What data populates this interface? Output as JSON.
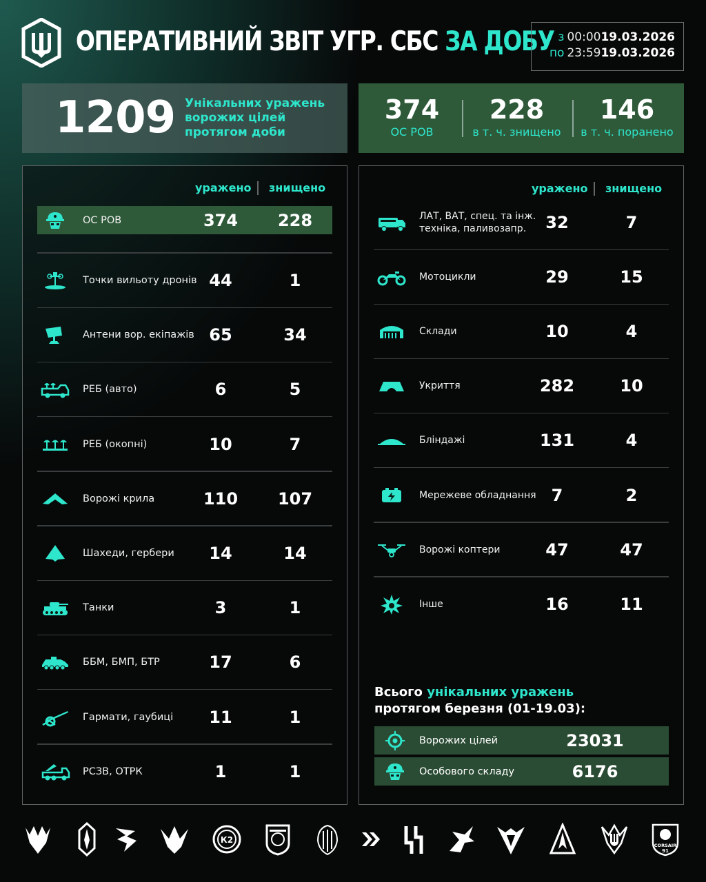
{
  "header": {
    "title_white": "ОПЕРАТИВНИЙ ЗВІТ УГР. СБС",
    "title_teal": "ЗА ДОБУ",
    "from_label": "з",
    "from_time": "00:00",
    "from_date": "19.03.2026",
    "to_label": "по",
    "to_time": "23:59",
    "to_date": "19.03.2026"
  },
  "summary": {
    "total": "1209",
    "description": "Унікальних уражень ворожих цілей протягом доби",
    "kpis": [
      {
        "value": "374",
        "label": "ОС РОВ"
      },
      {
        "value": "228",
        "label": "в т. ч. знищено"
      },
      {
        "value": "146",
        "label": "в т. ч. поранено"
      }
    ]
  },
  "columns": {
    "hit": "уражено",
    "destroyed": "знищено"
  },
  "left_rows": [
    {
      "icon": "soldier-helmet-icon",
      "name": "ОС РОВ",
      "hit": "374",
      "destroyed": "228"
    },
    {
      "icon": "drone-launch-point-icon",
      "name": "Точки вильоту дронів",
      "hit": "44",
      "destroyed": "1"
    },
    {
      "icon": "antenna-dish-icon",
      "name": "Антени вор. екіпажів",
      "hit": "65",
      "destroyed": "34"
    },
    {
      "icon": "ew-vehicle-icon",
      "name": "РЕБ (авто)",
      "hit": "6",
      "destroyed": "5"
    },
    {
      "icon": "ew-trench-icon",
      "name": "РЕБ (окопні)",
      "hit": "10",
      "destroyed": "7"
    },
    {
      "icon": "fixed-wing-drone-icon",
      "name": "Ворожі крила",
      "hit": "110",
      "destroyed": "107"
    },
    {
      "icon": "shahed-drone-icon",
      "name": "Шахеди, гербери",
      "hit": "14",
      "destroyed": "14"
    },
    {
      "icon": "tank-icon",
      "name": "Танки",
      "hit": "3",
      "destroyed": "1"
    },
    {
      "icon": "apc-icon",
      "name": "ББМ, БМП, БТР",
      "hit": "17",
      "destroyed": "6"
    },
    {
      "icon": "howitzer-icon",
      "name": "Гармати, гаубиці",
      "hit": "11",
      "destroyed": "1"
    },
    {
      "icon": "mlrs-icon",
      "name": "РСЗВ, ОТРК",
      "hit": "1",
      "destroyed": "1"
    }
  ],
  "right_rows": [
    {
      "icon": "truck-icon",
      "name": "ЛАТ, ВАТ, спец. та інж. техніка, паливозапр.",
      "hit": "32",
      "destroyed": "7"
    },
    {
      "icon": "motorcycle-icon",
      "name": "Мотоцикли",
      "hit": "29",
      "destroyed": "15"
    },
    {
      "icon": "warehouse-icon",
      "name": "Склади",
      "hit": "10",
      "destroyed": "4"
    },
    {
      "icon": "shelter-icon",
      "name": "Укриття",
      "hit": "282",
      "destroyed": "10"
    },
    {
      "icon": "dugout-icon",
      "name": "Бліндажі",
      "hit": "131",
      "destroyed": "4"
    },
    {
      "icon": "network-equipment-icon",
      "name": "Мережеве обладнання",
      "hit": "7",
      "destroyed": "2"
    },
    {
      "icon": "quadcopter-icon",
      "name": "Ворожі коптери",
      "hit": "47",
      "destroyed": "47"
    },
    {
      "icon": "explosion-icon",
      "name": "Інше",
      "hit": "16",
      "destroyed": "11"
    }
  ],
  "monthly": {
    "title_prefix": "Всього",
    "title_teal": "унікальних уражень",
    "title_suffix": "протягом березня (01-19.03):",
    "rows": [
      {
        "icon": "target-crosshair-icon",
        "name": "Ворожих цілей",
        "value": "23031"
      },
      {
        "icon": "soldier-helmet-icon",
        "name": "Особового складу",
        "value": "6176"
      }
    ]
  },
  "footer": {
    "emblems": [
      "emblem-1",
      "emblem-2",
      "emblem-3",
      "emblem-4",
      "emblem-k2",
      "emblem-6",
      "emblem-7",
      "emblem-8",
      "emblem-9",
      "emblem-10",
      "emblem-11",
      "emblem-12",
      "emblem-13",
      "emblem-corsair"
    ],
    "corsair_text": "CORSAIR",
    "corsair_num": "91",
    "k2_text": "К2"
  },
  "colors": {
    "accent": "#2ee6cc",
    "highlight": "#2f5a3a"
  }
}
